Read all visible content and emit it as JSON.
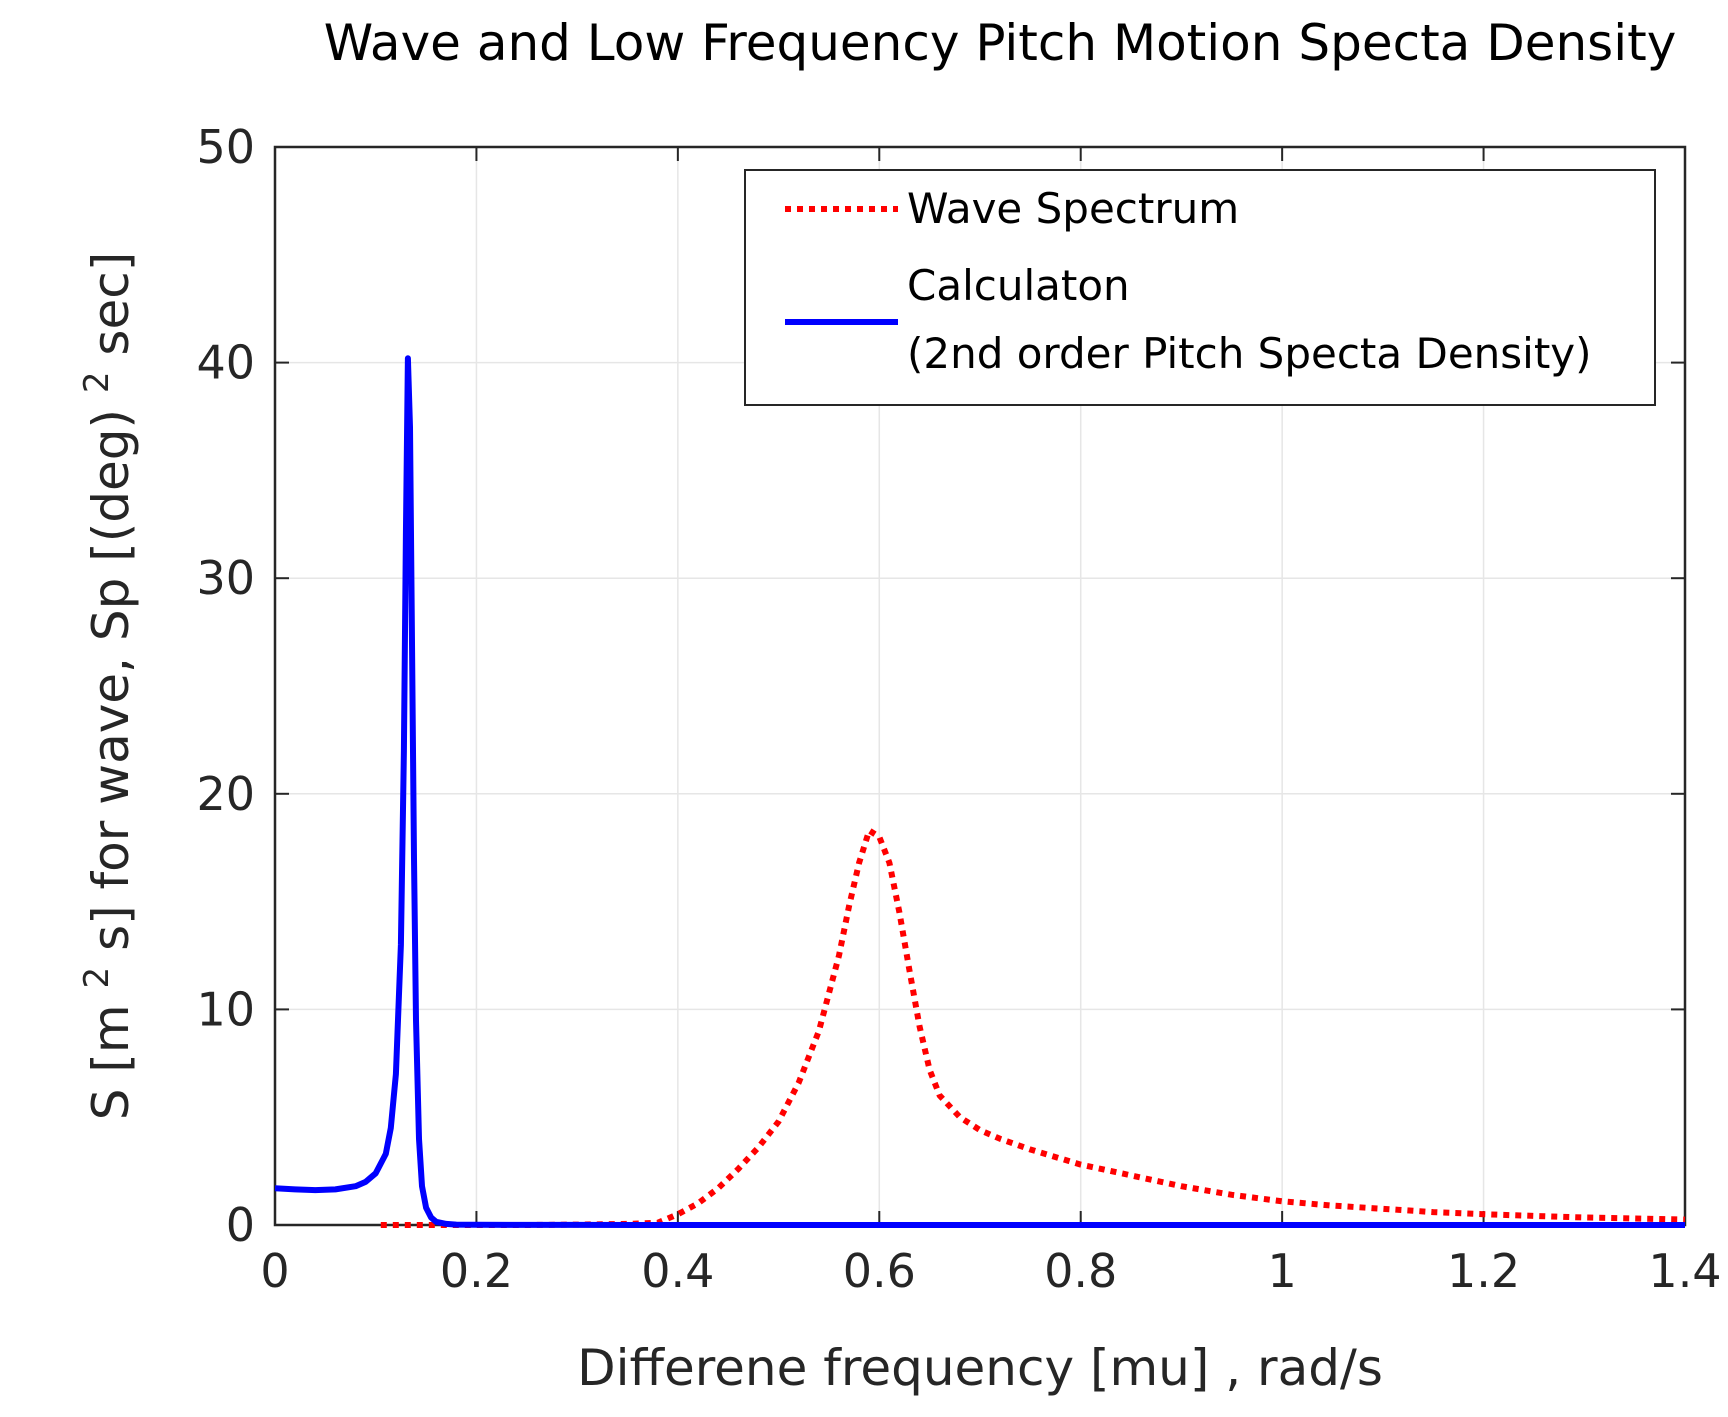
{
  "chart_data": {
    "type": "line",
    "title": "Wave and Low Frequency Pitch Motion Specta Density",
    "xlabel": "Differene frequency [mu] , rad/s",
    "ylabel": {
      "pre": "S [m",
      "sup1": "2",
      "mid": " s] for wave, Sp [(deg)",
      "sup2": "2",
      "post": " sec]"
    },
    "xlim": [
      0,
      1.4
    ],
    "ylim": [
      0,
      50
    ],
    "xticks": [
      0,
      0.2,
      0.4,
      0.6,
      0.8,
      1,
      1.2,
      1.4
    ],
    "xtick_labels": [
      "0",
      "0.2",
      "0.4",
      "0.6",
      "0.8",
      "1",
      "1.2",
      "1.4"
    ],
    "yticks": [
      0,
      10,
      20,
      30,
      40,
      50
    ],
    "ytick_labels": [
      "0",
      "10",
      "20",
      "30",
      "40",
      "50"
    ],
    "grid": true,
    "legend_position": "top-right",
    "series": [
      {
        "name": "Wave Spectrum",
        "legend_lines": [
          "Wave Spectrum"
        ],
        "color": "#ff0000",
        "style": "dotted",
        "x": [
          0.105,
          0.15,
          0.2,
          0.25,
          0.3,
          0.35,
          0.38,
          0.4,
          0.42,
          0.44,
          0.46,
          0.48,
          0.5,
          0.52,
          0.54,
          0.56,
          0.57,
          0.58,
          0.59,
          0.6,
          0.61,
          0.62,
          0.63,
          0.64,
          0.65,
          0.66,
          0.68,
          0.7,
          0.72,
          0.75,
          0.8,
          0.85,
          0.9,
          0.95,
          1.0,
          1.05,
          1.1,
          1.15,
          1.2,
          1.25,
          1.3,
          1.35,
          1.4
        ],
        "y": [
          0,
          0,
          0,
          0,
          0.02,
          0.05,
          0.1,
          0.5,
          1.0,
          1.7,
          2.6,
          3.6,
          4.8,
          6.6,
          9.0,
          12.5,
          14.8,
          16.8,
          18.3,
          18.0,
          16.8,
          14.5,
          11.8,
          9.2,
          7.2,
          6.0,
          5.0,
          4.4,
          4.0,
          3.5,
          2.8,
          2.3,
          1.8,
          1.4,
          1.1,
          0.9,
          0.75,
          0.6,
          0.5,
          0.42,
          0.35,
          0.3,
          0.25
        ]
      },
      {
        "name": "Calculaton (2nd order Pitch Specta Density)",
        "legend_lines": [
          "Calculaton",
          "(2nd order Pitch Specta Density)"
        ],
        "color": "#0000ff",
        "style": "solid",
        "x": [
          0,
          0.02,
          0.04,
          0.06,
          0.08,
          0.09,
          0.1,
          0.11,
          0.115,
          0.12,
          0.125,
          0.128,
          0.13,
          0.132,
          0.134,
          0.136,
          0.138,
          0.14,
          0.143,
          0.146,
          0.15,
          0.155,
          0.16,
          0.17,
          0.18,
          0.2,
          0.3,
          0.4,
          0.6,
          0.8,
          1.0,
          1.2,
          1.4
        ],
        "y": [
          1.7,
          1.65,
          1.62,
          1.65,
          1.8,
          2.0,
          2.4,
          3.3,
          4.5,
          7.0,
          13.0,
          22.0,
          32.0,
          40.2,
          37.0,
          27.0,
          17.0,
          9.5,
          4.0,
          1.8,
          0.8,
          0.35,
          0.15,
          0.05,
          0.02,
          0.01,
          0.005,
          0,
          0,
          0,
          0,
          0,
          0
        ]
      }
    ]
  }
}
